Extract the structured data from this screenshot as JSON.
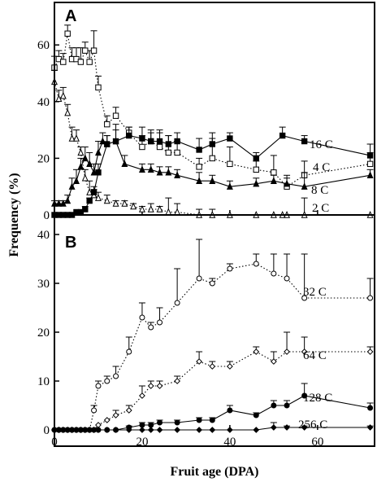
{
  "figure": {
    "ylabel": "Frequency (%)",
    "xlabel": "Fruit age (DPA)",
    "xticks": [
      0,
      20,
      40,
      60
    ]
  },
  "chart_data": [
    {
      "type": "line",
      "panel_label": "A",
      "xlabel": "Fruit age (DPA)",
      "ylabel": "Frequency (%)",
      "xlim": [
        0,
        73
      ],
      "ylim": [
        0,
        75
      ],
      "yticks": [
        0,
        20,
        40,
        60
      ],
      "grid": false,
      "legend": "none (series labels at right end of lines)",
      "series": [
        {
          "name": "2 C",
          "marker": "open-triangle",
          "line": "dotted",
          "x": [
            0,
            1,
            2,
            3,
            4,
            5,
            6,
            7,
            8,
            9,
            10,
            12,
            14,
            16,
            18,
            20,
            22,
            24,
            26,
            28,
            33,
            36,
            40,
            46,
            50,
            52,
            53,
            57,
            72
          ],
          "y": [
            47,
            41,
            42,
            36,
            27,
            27,
            22,
            13,
            8,
            7,
            6,
            5,
            4,
            4,
            3,
            2,
            2,
            2,
            1,
            1,
            0,
            0,
            0,
            0,
            0,
            0,
            0,
            0,
            0
          ],
          "err": [
            4,
            3,
            3,
            3,
            4,
            3,
            2,
            3,
            4,
            2,
            2,
            2,
            1,
            1,
            1,
            1,
            2,
            1,
            5,
            3,
            2,
            2,
            0,
            0,
            0,
            0,
            0,
            6,
            0
          ]
        },
        {
          "name": "4 C",
          "marker": "open-square",
          "line": "dotted",
          "x": [
            0,
            1,
            2,
            3,
            4,
            5,
            6,
            7,
            8,
            9,
            10,
            12,
            14,
            17,
            20,
            22,
            24,
            26,
            28,
            33,
            36,
            40,
            46,
            50,
            53,
            57,
            72
          ],
          "y": [
            52,
            55,
            54,
            64,
            55,
            55,
            54,
            58,
            54,
            58,
            45,
            32,
            35,
            29,
            24,
            26,
            24,
            22,
            22,
            17,
            20,
            18,
            16,
            15,
            10,
            14,
            18
          ],
          "err": [
            4,
            3,
            3,
            3,
            4,
            4,
            5,
            3,
            4,
            7,
            4,
            3,
            3,
            2,
            4,
            3,
            5,
            6,
            4,
            3,
            7,
            6,
            3,
            6,
            4,
            5,
            4
          ]
        },
        {
          "name": "8 C",
          "marker": "filled-triangle",
          "line": "solid",
          "x": [
            0,
            1,
            2,
            3,
            4,
            5,
            6,
            7,
            8,
            9,
            10,
            11,
            12,
            14,
            16,
            20,
            22,
            24,
            26,
            28,
            33,
            36,
            40,
            46,
            50,
            53,
            57,
            72
          ],
          "y": [
            4,
            4,
            4,
            5,
            10,
            12,
            17,
            20,
            18,
            15,
            22,
            26,
            25,
            26,
            18,
            16,
            16,
            15,
            15,
            14,
            12,
            12,
            10,
            11,
            12,
            11,
            10,
            14
          ],
          "err": [
            1,
            1,
            1,
            2,
            3,
            4,
            3,
            4,
            4,
            3,
            4,
            3,
            3,
            6,
            3,
            2,
            2,
            2,
            2,
            2,
            3,
            2,
            2,
            2,
            2,
            2,
            5,
            2
          ]
        },
        {
          "name": "16 C",
          "marker": "filled-square",
          "line": "solid",
          "x": [
            0,
            1,
            2,
            3,
            4,
            5,
            6,
            7,
            8,
            9,
            10,
            12,
            14,
            17,
            20,
            22,
            24,
            26,
            28,
            33,
            36,
            40,
            46,
            52,
            57,
            72
          ],
          "y": [
            0,
            0,
            0,
            0,
            0,
            1,
            1,
            2,
            5,
            8,
            15,
            25,
            26,
            28,
            27,
            26,
            26,
            25,
            26,
            23,
            25,
            27,
            20,
            28,
            26,
            21
          ],
          "err": [
            0,
            0,
            0,
            0,
            0,
            0,
            0,
            1,
            1,
            2,
            3,
            3,
            4,
            3,
            4,
            4,
            4,
            3,
            3,
            4,
            4,
            2,
            2,
            3,
            2,
            4
          ]
        }
      ],
      "labels": [
        "16 C",
        "4 C",
        "8 C",
        "2 C"
      ]
    },
    {
      "type": "line",
      "panel_label": "B",
      "xlabel": "Fruit age (DPA)",
      "ylabel": "Frequency (%)",
      "xlim": [
        0,
        73
      ],
      "ylim": [
        0,
        44
      ],
      "yticks": [
        0,
        10,
        20,
        30,
        40
      ],
      "grid": false,
      "legend": "none (series labels at right end of lines)",
      "series": [
        {
          "name": "32 C",
          "marker": "open-circle",
          "line": "dotted",
          "x": [
            0,
            1,
            2,
            3,
            4,
            5,
            6,
            7,
            8,
            9,
            10,
            12,
            14,
            17,
            20,
            22,
            24,
            28,
            33,
            36,
            40,
            46,
            50,
            53,
            57,
            72
          ],
          "y": [
            0,
            0,
            0,
            0,
            0,
            0,
            0,
            0,
            0,
            4,
            9,
            10,
            11,
            16,
            23,
            21,
            22,
            26,
            31,
            30,
            33,
            34,
            32,
            31,
            27,
            27
          ],
          "err": [
            0,
            0,
            0,
            0,
            0,
            0,
            0,
            0,
            0,
            1,
            1,
            1,
            2,
            3,
            3,
            1,
            3,
            7,
            8,
            1,
            1,
            2,
            4,
            5,
            9,
            4
          ]
        },
        {
          "name": "64 C",
          "marker": "open-diamond",
          "line": "dotted",
          "x": [
            0,
            1,
            2,
            3,
            4,
            5,
            6,
            7,
            8,
            9,
            10,
            12,
            14,
            17,
            20,
            22,
            24,
            28,
            33,
            36,
            40,
            46,
            50,
            53,
            57,
            72
          ],
          "y": [
            0,
            0,
            0,
            0,
            0,
            0,
            0,
            0,
            0,
            0,
            1,
            2,
            3,
            4,
            7,
            9,
            9,
            10,
            14,
            13,
            13,
            16,
            14,
            16,
            16,
            16
          ],
          "err": [
            0,
            0,
            0,
            0,
            0,
            0,
            0,
            0,
            0,
            0,
            0,
            0,
            1,
            1,
            2,
            1,
            1,
            1,
            2,
            1,
            1,
            1,
            2,
            4,
            3,
            1
          ]
        },
        {
          "name": "128 C",
          "marker": "filled-circle",
          "line": "solid",
          "x": [
            0,
            1,
            2,
            3,
            4,
            5,
            6,
            7,
            8,
            9,
            10,
            12,
            14,
            17,
            20,
            22,
            24,
            28,
            33,
            36,
            40,
            46,
            50,
            53,
            57,
            72
          ],
          "y": [
            0,
            0,
            0,
            0,
            0,
            0,
            0,
            0,
            0,
            0,
            0,
            0,
            0,
            0.5,
            1,
            1,
            1.5,
            1.5,
            2,
            2,
            4,
            3,
            5,
            5,
            7,
            4.5
          ],
          "err": [
            0,
            0,
            0,
            0,
            0,
            0,
            0,
            0,
            0,
            0,
            0,
            0,
            0,
            0.3,
            0.5,
            0.5,
            0.5,
            0.5,
            0.5,
            0.5,
            1,
            0.5,
            1,
            1,
            2.5,
            1
          ]
        },
        {
          "name": "256 C",
          "marker": "filled-diamond",
          "line": "solid",
          "x": [
            0,
            1,
            2,
            3,
            4,
            5,
            6,
            7,
            8,
            9,
            10,
            12,
            14,
            17,
            20,
            22,
            24,
            28,
            33,
            36,
            40,
            46,
            50,
            53,
            57,
            72
          ],
          "y": [
            0,
            0,
            0,
            0,
            0,
            0,
            0,
            0,
            0,
            0,
            0,
            0,
            0,
            0,
            0,
            0,
            0,
            0,
            0,
            0,
            0,
            0,
            0.5,
            0.5,
            0.5,
            0.5
          ],
          "err": [
            0,
            0,
            0,
            0,
            0,
            0,
            0,
            0,
            0,
            0,
            0,
            0,
            0,
            0,
            0,
            0,
            0,
            0,
            0,
            0,
            0,
            0,
            1,
            0.3,
            0.3,
            0.3
          ]
        }
      ],
      "labels": [
        "32 C",
        "64 C",
        "128 C",
        "256 C"
      ]
    }
  ]
}
